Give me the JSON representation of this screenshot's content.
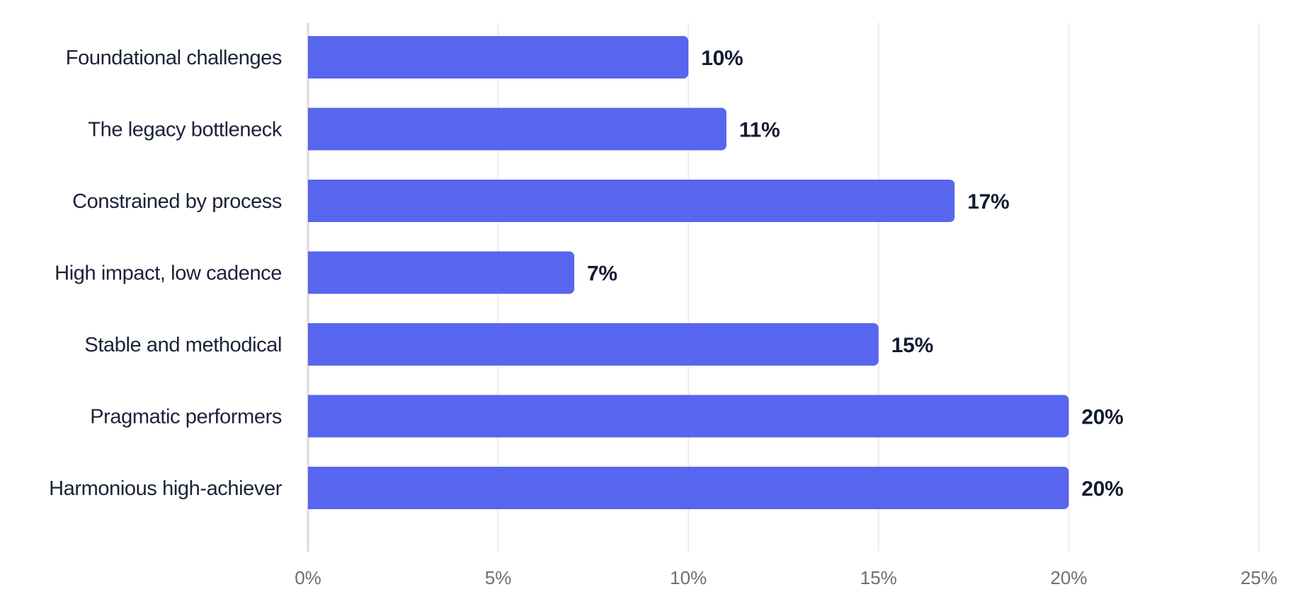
{
  "chart_data": {
    "type": "bar",
    "orientation": "horizontal",
    "categories": [
      "Foundational challenges",
      "The legacy bottleneck",
      "Constrained by process",
      "High impact, low cadence",
      "Stable and methodical",
      "Pragmatic performers",
      "Harmonious high-achiever"
    ],
    "values": [
      10,
      11,
      17,
      7,
      15,
      20,
      20
    ],
    "value_labels": [
      "10%",
      "11%",
      "17%",
      "7%",
      "15%",
      "20%",
      "20%"
    ],
    "x_ticks": [
      0,
      5,
      10,
      15,
      20,
      25
    ],
    "x_tick_labels": [
      "0%",
      "5%",
      "10%",
      "15%",
      "20%",
      "25%"
    ],
    "xlim": [
      0,
      25
    ],
    "grid": "vertical",
    "bar_color": "#5865ee",
    "label_color": "#141c33",
    "tick_color": "#6b6f7a"
  }
}
